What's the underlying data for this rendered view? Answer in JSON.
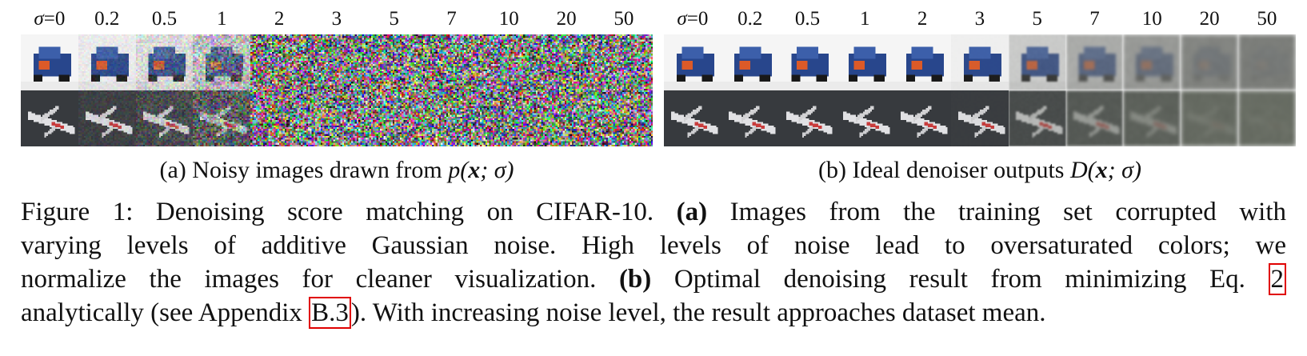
{
  "figure": {
    "sigma_symbol": "σ",
    "sigma_levels": [
      "=0",
      "0.2",
      "0.5",
      "1",
      "2",
      "3",
      "5",
      "7",
      "10",
      "20",
      "50"
    ],
    "panel_a": {
      "caption_prefix": "(a) Noisy images drawn from ",
      "caption_math": "p(x; σ)"
    },
    "panel_b": {
      "caption_prefix": "(b) Ideal denoiser outputs ",
      "caption_math": "D(x; σ)"
    },
    "rows": [
      "truck",
      "airplane"
    ]
  },
  "caption": {
    "label": "Figure 1:",
    "line1_text": " Denoising score matching on CIFAR-10. ",
    "a_bold": "(a)",
    "line1_rest": " Images from the training set corrupted with",
    "line2": "varying levels of additive Gaussian noise.  High levels of noise lead to oversaturated colors; we",
    "line3_text": "normalize the images for cleaner visualization. ",
    "b_bold": "(b)",
    "line3_rest": " Optimal denoising result from minimizing Eq. ",
    "eq_ref": "2",
    "line4_text": "analytically (see Appendix ",
    "appendix_ref": "B.3",
    "line4_rest": "). With increasing noise level, the result approaches dataset mean."
  },
  "colors": {
    "ref_box": "#e00000"
  }
}
